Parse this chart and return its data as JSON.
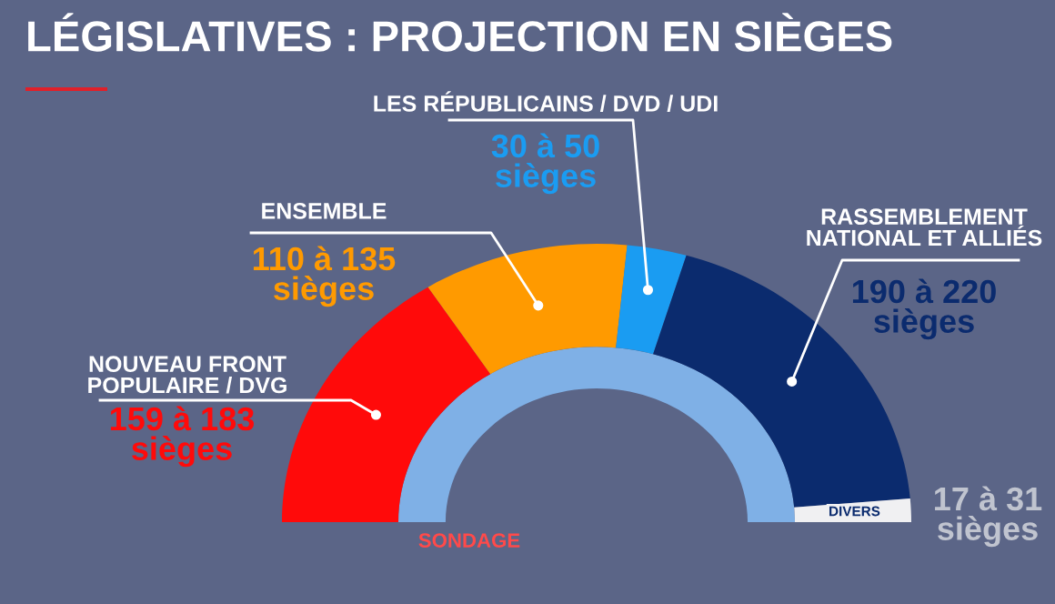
{
  "chart_data": {
    "type": "donut",
    "title": "LÉGISLATIVES : PROJECTION EN SIÈGES",
    "categories": [
      "NOUVEAU FRONT\nPOPULAIRE / DVG",
      "ENSEMBLE",
      "LES RÉPUBLICAINS / DVD / UDI",
      "RASSEMBLEMENT\nNATIONAL ET ALLIÉS",
      "DIVERS"
    ],
    "values": [
      32.0,
      21.1,
      6.1,
      38.1,
      2.7
    ],
    "colors": [
      "#ff0a0a",
      "#ff9a00",
      "#1a9cf2",
      "#0b2b6e",
      "#f0f0f2"
    ],
    "annotations": [
      "159 à 183\nsièges",
      "110 à 135\nsièges",
      "30 à 50\nsièges",
      "190 à 220\nsièges",
      "17 à 31\nsièges",
      "SONDAGE"
    ]
  }
}
